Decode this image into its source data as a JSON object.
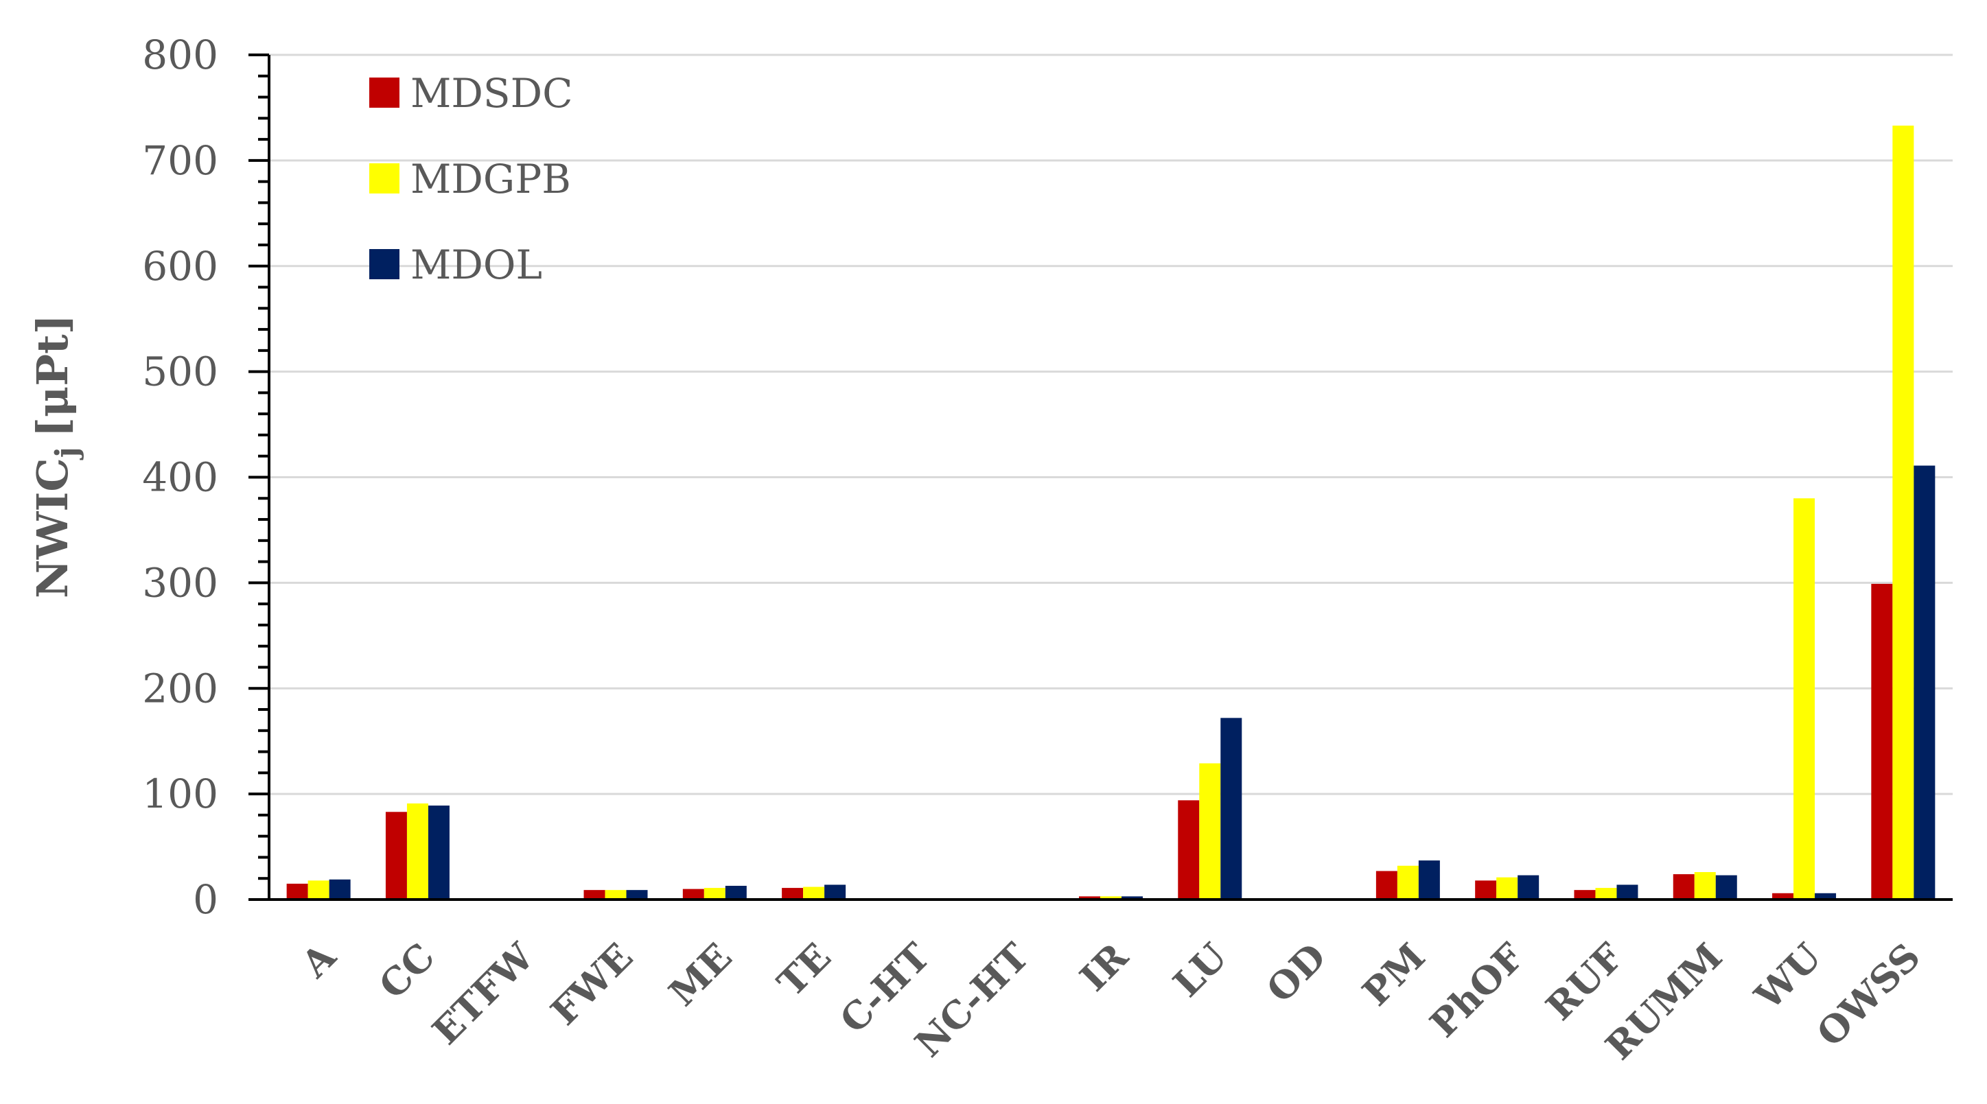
{
  "chart_data": {
    "type": "bar",
    "ylabel": "NWIC",
    "ylabel_subscript": "j",
    "ylabel_unit": "[μPt]",
    "ylim": [
      0,
      800
    ],
    "yticks": [
      "0",
      "100",
      "200",
      "300",
      "400",
      "500",
      "600",
      "700",
      "800"
    ],
    "grid": true,
    "legend_position": "top-left",
    "categories": [
      "A",
      "CC",
      "ETFW",
      "FWE",
      "ME",
      "TE",
      "C-HT",
      "NC-HT",
      "IR",
      "LU",
      "OD",
      "PM",
      "PhOF",
      "RUF",
      "RUMM",
      "WU",
      "OWSS"
    ],
    "series": [
      {
        "name": "MDSDC",
        "color": "#c00000",
        "values": [
          15,
          83,
          0,
          9,
          10,
          11,
          0,
          0,
          3,
          94,
          0,
          27,
          18,
          9,
          24,
          6,
          299
        ]
      },
      {
        "name": "MDGPB",
        "color": "#ffff00",
        "values": [
          18,
          91,
          0,
          9,
          11,
          12,
          0,
          0,
          3,
          129,
          0,
          32,
          21,
          11,
          26,
          380,
          733
        ]
      },
      {
        "name": "MDOL",
        "color": "#002060",
        "values": [
          19,
          89,
          0,
          9,
          13,
          14,
          0,
          0,
          3,
          172,
          0,
          37,
          23,
          14,
          23,
          6,
          411
        ]
      }
    ]
  }
}
